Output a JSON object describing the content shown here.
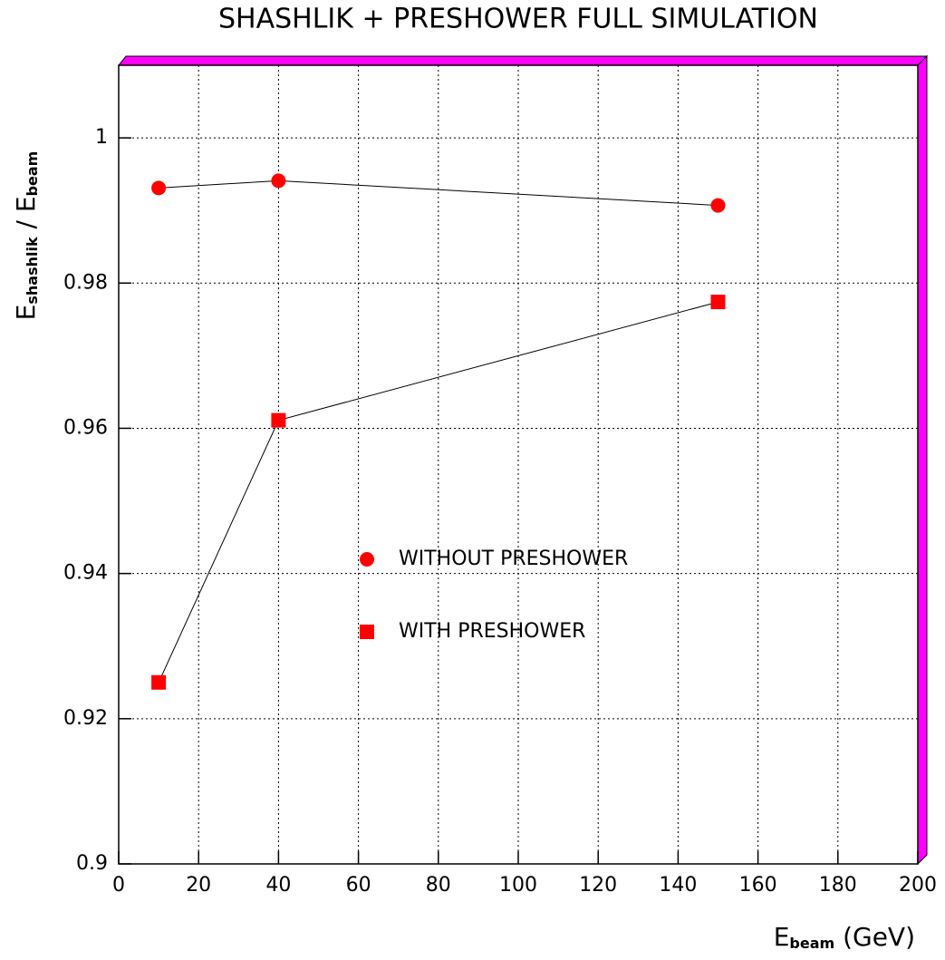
{
  "chart_data": {
    "type": "line",
    "title": "SHASHLIK + PRESHOWER FULL SIMULATION",
    "ylabel_parts": [
      "E",
      "shashlik",
      " / E",
      "beam"
    ],
    "xlabel_parts": [
      "E",
      "beam",
      " (GeV)"
    ],
    "xlim": [
      0,
      200
    ],
    "xticks": [
      0,
      20,
      40,
      60,
      80,
      100,
      120,
      140,
      160,
      180,
      200
    ],
    "ylim": [
      0.9,
      1.01
    ],
    "yticks": [
      0.9,
      0.92,
      0.94,
      0.96,
      0.98,
      1
    ],
    "grid": true,
    "series": [
      {
        "name": "WITHOUT PRESHOWER",
        "color": "#ff0000",
        "marker": "circle",
        "x": [
          10,
          40,
          150
        ],
        "values": [
          0.9931,
          0.9941,
          0.9907
        ]
      },
      {
        "name": "WITH PRESHOWER",
        "color": "#ff0000",
        "marker": "square",
        "x": [
          10,
          40,
          150
        ],
        "values": [
          0.925,
          0.9611,
          0.9774
        ]
      }
    ]
  }
}
